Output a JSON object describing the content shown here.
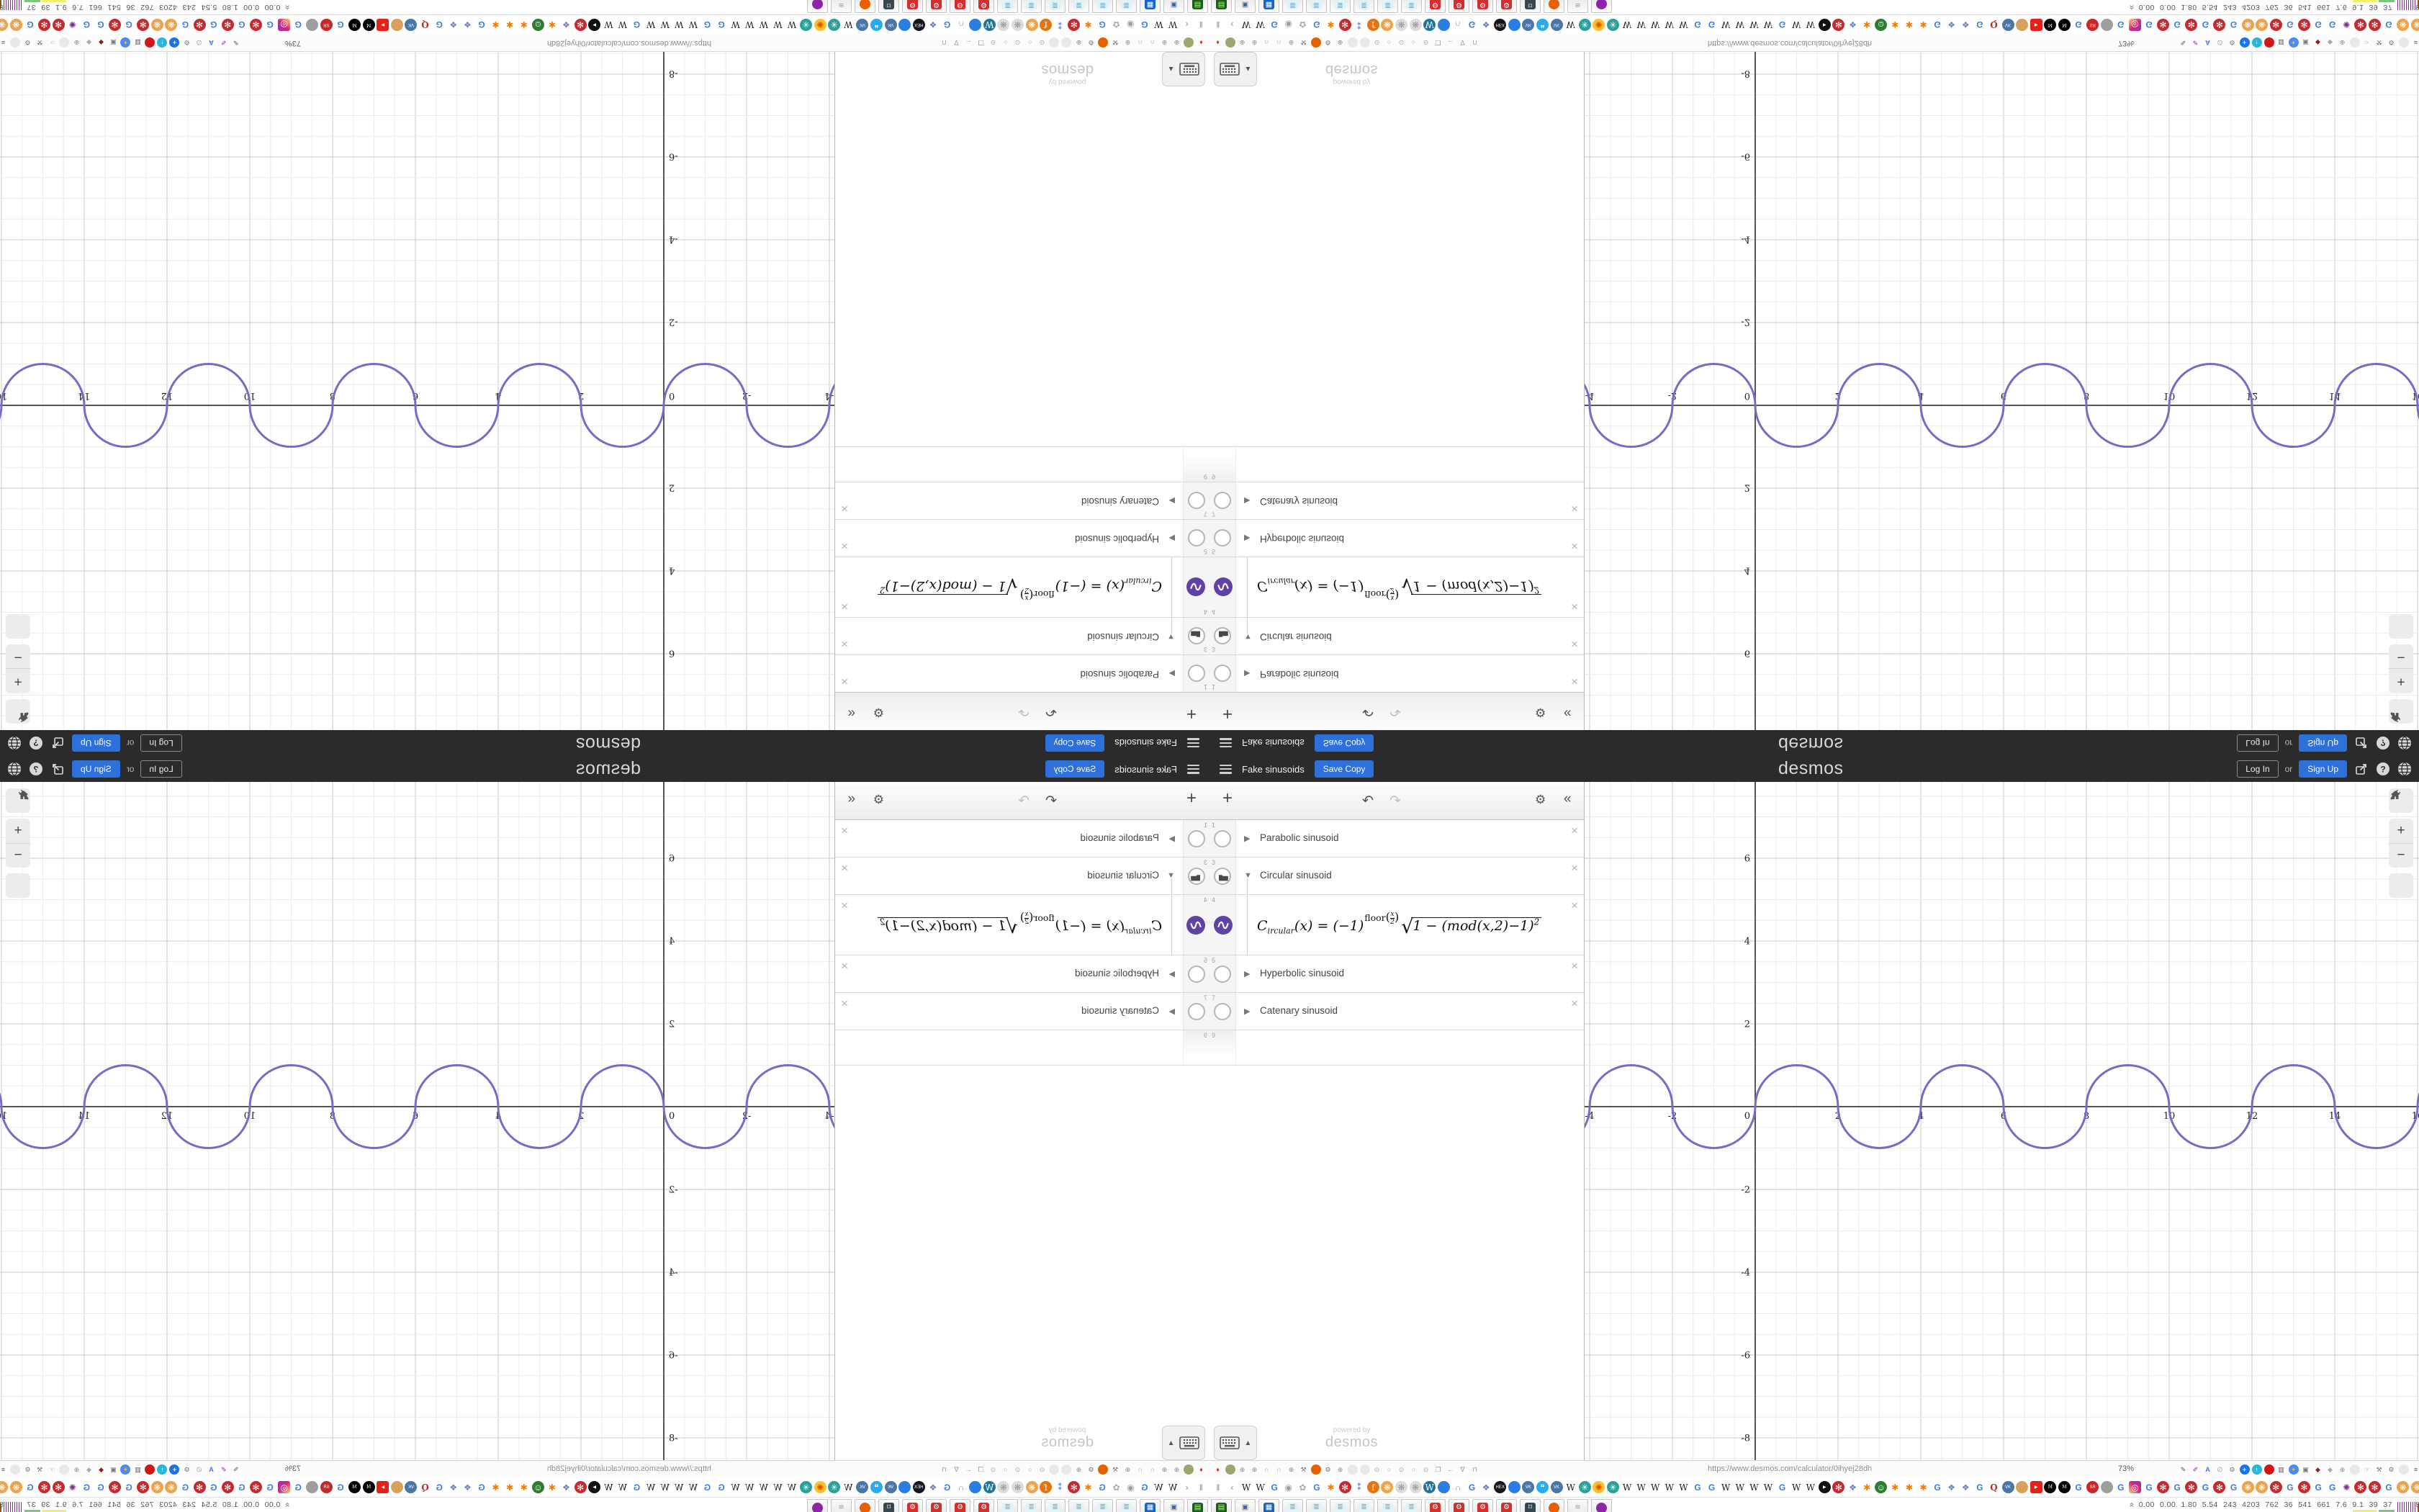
{
  "header": {
    "menu_icon": "hamburger",
    "graph_title": "Fake sinusoids",
    "save_copy_label": "Save Copy",
    "logo_text": "desmos",
    "login_label": "Log In",
    "or_label": "or",
    "signup_label": "Sign Up",
    "right_icons": [
      "share-icon",
      "help-icon",
      "language-globe-icon"
    ],
    "accent_blue": "#2e70d9",
    "header_bg": "#2b2b2b"
  },
  "expressions": {
    "toolbar": {
      "add_label": "+",
      "undo_label": "↶",
      "redo_label": "↷",
      "gear_label": "⚙",
      "hide_label": "«"
    },
    "rows": [
      {
        "index": "1",
        "label": "Parabolic sinusoid",
        "type": "folder",
        "state": "collapsed"
      },
      {
        "index": "3",
        "label": "Circular sinusoid",
        "type": "folder",
        "state": "expanded"
      },
      {
        "index": "4",
        "type": "formula"
      },
      {
        "index": "5",
        "label": "Hyperbolic sinusoid",
        "type": "folder",
        "state": "collapsed"
      },
      {
        "index": "7",
        "label": "Catenary sinusoid",
        "type": "folder",
        "state": "collapsed"
      },
      {
        "index": "9",
        "label": "",
        "type": "empty"
      }
    ],
    "delete_label": "×",
    "collapsed_arrow": "▶",
    "expanded_arrow": "▼",
    "keyboard_caret": "▲",
    "watermark_line1": "powered by",
    "watermark_line2": "desmos"
  },
  "formula": {
    "lhs_head": "C",
    "lhs_sub": "ircular",
    "mid": "(x) = (−1)",
    "exp_func": "floor",
    "exp_num": "x",
    "exp_den": "2",
    "open_paren": "(",
    "close_paren": ")",
    "sqrt_sign": "√",
    "sqrt_body": "1 − (mod(x,2)−1)",
    "sqrt_exp": "2"
  },
  "chart_data": {
    "type": "line",
    "title": "Circular sinusoid",
    "equation": "C_ircular(x) = (-1)^floor(x/2) * sqrt(1 - (mod(x,2)-1)^2)",
    "description": "Alternating unit-radius semicircles along the x-axis, period 4",
    "x_ticks": [
      -4,
      -2,
      0,
      2,
      4,
      6,
      8,
      10,
      12,
      14,
      16
    ],
    "y_ticks": [
      -8,
      -6,
      -4,
      -2,
      0,
      2,
      4,
      6
    ],
    "x_range": [
      -4.1,
      16.1
    ],
    "y_range": [
      -8.5,
      7.8
    ],
    "tick_step": 2,
    "minor_per_major": 4,
    "grid": true,
    "curve_color": "#7a6ac5",
    "axis_color": "#555555",
    "major_grid_color": "#c9c9c9",
    "minor_grid_color": "#ebebeb",
    "arcs": [
      {
        "from": -6,
        "to": -4,
        "dir": "down"
      },
      {
        "from": -4,
        "to": -2,
        "dir": "up"
      },
      {
        "from": -2,
        "to": 0,
        "dir": "down"
      },
      {
        "from": 0,
        "to": 2,
        "dir": "up"
      },
      {
        "from": 2,
        "to": 4,
        "dir": "down"
      },
      {
        "from": 4,
        "to": 6,
        "dir": "up"
      },
      {
        "from": 6,
        "to": 8,
        "dir": "down"
      },
      {
        "from": 8,
        "to": 10,
        "dir": "up"
      },
      {
        "from": 10,
        "to": 12,
        "dir": "down"
      },
      {
        "from": 12,
        "to": 14,
        "dir": "up"
      },
      {
        "from": 14,
        "to": 16,
        "dir": "down"
      },
      {
        "from": 16,
        "to": 18,
        "dir": "up"
      }
    ]
  },
  "graph_controls": {
    "wrench": "graph-settings",
    "zoom_in": "+",
    "zoom_out": "−",
    "home": "⌂"
  },
  "chrome": {
    "toolbar_row": {
      "left_icons": [
        "pin",
        "grn",
        "globe",
        "globe",
        "arc",
        "arc",
        "globe",
        "wrench",
        "ffx",
        "gear",
        "globe",
        "fade",
        "fade",
        "rad",
        "cir",
        "rad",
        "cir",
        "rad",
        "folder",
        "left",
        "shield",
        "lock"
      ],
      "url": "https://www.desmos.com/calculator/0ihyej28dh",
      "zoom_level": "73%",
      "right_icons": [
        "pen",
        "marker",
        "tr",
        "mouse",
        "gear",
        "plusb",
        "upc",
        "redc",
        "trash",
        "globec",
        "frame",
        "shieldr",
        "shieldg",
        "globe",
        "fade",
        "thumb",
        "wrench",
        "gear",
        "fade",
        "ham"
      ]
    },
    "tabs_row": [
      "pause",
      "lt",
      "W",
      "W",
      "G",
      "dot",
      "flw",
      "G",
      "gearo",
      "snow",
      "ppl",
      "fx",
      "mnd",
      "mndg",
      "mndg",
      "wp",
      "drop",
      "arc",
      "G",
      "mol",
      "hex",
      "drop",
      "vk",
      "chat",
      "vk",
      "W",
      "knit",
      "sun",
      "knit",
      "W",
      "W",
      "W",
      "W",
      "W",
      "G",
      "G",
      "W",
      "W",
      "W",
      "W",
      "G",
      "W",
      "W",
      "play",
      "snow",
      "mol",
      "gearo",
      "frog",
      "gearo",
      "gearo",
      "gearo",
      "G",
      "mol",
      "mol",
      "G",
      "q",
      "vk",
      "av1",
      "yt",
      "med",
      "med",
      "G",
      "sr",
      "av2",
      "G",
      "ig",
      "G",
      "snow",
      "G",
      "snow",
      "G",
      "snow",
      "G",
      "mnd",
      "mnd",
      "snow",
      "G",
      "snow",
      "G",
      "G",
      "burst",
      "snow",
      "snow",
      "G",
      "mnd",
      "mnd",
      "G",
      "gt",
      "caret"
    ],
    "taskbar": {
      "buttons": [
        "book",
        "pc",
        "floppy",
        "note",
        "note",
        "note",
        "note",
        "note",
        "note",
        "rgear",
        "rgear",
        "rgear",
        "rgear",
        "cam",
        "ffx2",
        "scroll",
        "ava"
      ],
      "stats_collapse": "«",
      "stats": "0.00 0.00 1.80 5.54 243 4203 762 36 541 661 7.6 9.1 39 37 38388097"
    }
  },
  "icon_legend": {
    "pause": {
      "g": "‖",
      "fg": "#888"
    },
    "lt": {
      "g": "‹",
      "fg": "#888"
    },
    "gt": {
      "g": "›",
      "fg": "#888"
    },
    "caret": {
      "g": "∧",
      "fg": "#888"
    },
    "W": {
      "g": "W",
      "fg": "#1a1a1a",
      "serif": true
    },
    "G": {
      "g": "G",
      "fg": "#3b78e7",
      "bold": true
    },
    "dot": {
      "g": "◉",
      "fg": "#9e9e9e"
    },
    "flw": {
      "g": "✿",
      "fg": "#aaaaaa"
    },
    "gearo": {
      "g": "✱",
      "fg": "#f57c00"
    },
    "snow": {
      "g": "✻",
      "fg": "#ffffff",
      "bg": "#c62a2e"
    },
    "ppl": {
      "g": "⁑",
      "fg": "#3b6fd4"
    },
    "fx": {
      "g": "f",
      "fg": "#ffffff",
      "bg": "#e8720c",
      "serif": true
    },
    "mnd": {
      "g": "❋",
      "fg": "#ffffff",
      "bg": "#f0a24a"
    },
    "mndg": {
      "g": "❋",
      "fg": "#999999",
      "bg": "#dcdcdc"
    },
    "wp": {
      "g": "W",
      "fg": "#ffffff",
      "bg": "#21759b",
      "serif": true
    },
    "drop": {
      "g": "",
      "fg": "#fff",
      "bg": "#2a7de1"
    },
    "arc": {
      "g": "∩",
      "fg": "#999999"
    },
    "mol": {
      "g": "❖",
      "fg": "#6b7fb9"
    },
    "hex": {
      "g": "HEX",
      "fg": "#ffffff",
      "bg": "#17141f",
      "tiny": true
    },
    "vk": {
      "g": "VK",
      "fg": "#ffffff",
      "bg": "#4a76a8",
      "tiny": true
    },
    "chat": {
      "g": "❝",
      "fg": "#ffffff",
      "bg": "#2aabee"
    },
    "knit": {
      "g": "✳",
      "fg": "#ffffff",
      "bg": "#2aa198"
    },
    "sun": {
      "g": "✺",
      "fg": "#e65100",
      "bg": "#fbc02d"
    },
    "play": {
      "g": "▶",
      "fg": "#ffffff",
      "bg": "#111111",
      "tiny": true
    },
    "yt": {
      "g": "▶",
      "fg": "#ffffff",
      "bg": "#e62117",
      "sq": true,
      "tiny": true
    },
    "med": {
      "g": "M",
      "fg": "#ffffff",
      "bg": "#000000",
      "serif": true,
      "tiny": true
    },
    "q": {
      "g": "Q",
      "fg": "#b92b27",
      "serif": true,
      "bold": true
    },
    "av1": {
      "g": "",
      "fg": "#fff",
      "bg": "#d9a05c"
    },
    "av2": {
      "g": "",
      "fg": "#fff",
      "bg": "#9e9e9e"
    },
    "sr": {
      "g": "SR",
      "fg": "#ffffff",
      "bg": "#c62828",
      "tiny": true
    },
    "ig": {
      "g": "◎",
      "fg": "#ffffff",
      "bg": "linear-gradient(45deg,#feda75,#d62976,#962fbf)",
      "sq": true
    },
    "burst": {
      "g": "✺",
      "fg": "#7b2d8e"
    },
    "frog": {
      "g": "☺",
      "fg": "#ffffff",
      "bg": "#2e7d32"
    },
    "pin": {
      "g": "♦",
      "fg": "#d93025"
    },
    "grn": {
      "g": "",
      "fg": "#fff",
      "bg": "#9aa86f"
    },
    "globe": {
      "g": "⊕",
      "fg": "#8a8a8a"
    },
    "wrench": {
      "g": "⚒",
      "fg": "#777777"
    },
    "ffx": {
      "g": "",
      "fg": "#fff",
      "bg": "#e66000"
    },
    "ffx2": {
      "g": "",
      "fg": "#fff",
      "bg": "#e66000"
    },
    "gear": {
      "g": "⚙",
      "fg": "#777777"
    },
    "fade": {
      "g": "",
      "fg": "#fff",
      "bg": "#e8e8e8"
    },
    "rad": {
      "g": "⊙",
      "fg": "#9e9e9e"
    },
    "cir": {
      "g": "○",
      "fg": "#9e9e9e"
    },
    "folder": {
      "g": "❐",
      "fg": "#999999"
    },
    "left": {
      "g": "←",
      "fg": "#999999"
    },
    "shield": {
      "g": "∇",
      "fg": "#999999"
    },
    "lock": {
      "g": "⊓",
      "fg": "#999999"
    },
    "pen": {
      "g": "✎",
      "fg": "#555555"
    },
    "marker": {
      "g": "✐",
      "fg": "#8e24aa"
    },
    "tr": {
      "g": "A",
      "fg": "#3b78e7",
      "bold": true
    },
    "mouse": {
      "g": "∅",
      "fg": "#999999"
    },
    "plusb": {
      "g": "+",
      "fg": "#ffffff",
      "bg": "#1a73e8",
      "bold": true
    },
    "upc": {
      "g": "↑",
      "fg": "#ffffff",
      "bg": "#29b6d8",
      "bold": true
    },
    "redc": {
      "g": "",
      "fg": "#fff",
      "bg": "#d01716"
    },
    "trash": {
      "g": "▥",
      "fg": "#555555"
    },
    "globec": {
      "g": "✦",
      "fg": "#ffb300",
      "bg": "#4b8bf5"
    },
    "frame": {
      "g": "▣",
      "fg": "#777777"
    },
    "shieldr": {
      "g": "◆",
      "fg": "#8e2020"
    },
    "shieldg": {
      "g": "◆",
      "fg": "#aaaaaa"
    },
    "thumb": {
      "g": "☞",
      "fg": "#999999"
    },
    "ham": {
      "g": "≡",
      "fg": "#555555"
    },
    "book": {
      "g": "▤",
      "fg": "#b2ff59",
      "bg": "#1b5e20",
      "sq": true
    },
    "pc": {
      "g": "▣",
      "fg": "#44619e"
    },
    "floppy": {
      "g": "▦",
      "fg": "#ffffff",
      "bg": "#1565c0",
      "sq": true
    },
    "note": {
      "g": "≣",
      "fg": "#7aa6b8",
      "bg": "#dff3f8",
      "sq": true
    },
    "rgear": {
      "g": "⚙",
      "fg": "#ffffff",
      "bg": "#d32f2f",
      "sq": true
    },
    "cam": {
      "g": "⌑",
      "fg": "#ffffff",
      "bg": "#37474f",
      "sq": true
    },
    "scroll": {
      "g": "≋",
      "fg": "#90a4ae"
    },
    "ava": {
      "g": "",
      "fg": "#fff",
      "bg": "#8e24aa"
    }
  }
}
